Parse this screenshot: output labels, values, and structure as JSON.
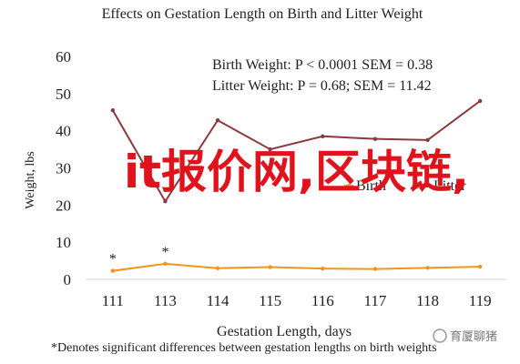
{
  "chart_data": {
    "type": "line",
    "title": "Effects on Gestation Length on Birth and Litter Weight",
    "xlabel": "Gestation Length, days",
    "ylabel": "Weight, lbs",
    "categories": [
      "111",
      "113",
      "114",
      "115",
      "116",
      "117",
      "118",
      "119"
    ],
    "ylim": [
      0,
      60
    ],
    "yticks": [
      0,
      10,
      20,
      30,
      40,
      50,
      60
    ],
    "grid": false,
    "legend_placement": "right-middle",
    "series": [
      {
        "name": "Birth",
        "color": "#f0951f",
        "marker": "dash",
        "values": [
          2.3,
          4.2,
          3.0,
          3.3,
          2.9,
          2.8,
          3.1,
          3.4
        ]
      },
      {
        "name": "Litter",
        "color": "#8a3a3f",
        "marker": "dash",
        "values": [
          45.5,
          21.0,
          42.8,
          35.0,
          38.5,
          37.8,
          37.5,
          48.0
        ]
      }
    ],
    "annotations": {
      "stats_line_1": "Birth Weight: P < 0.0001 SEM = 0.38",
      "stats_line_2": "Litter Weight: P = 0.68; SEM = 11.42",
      "asterisk_marks": [
        {
          "category": "111",
          "text": "*"
        },
        {
          "category": "113",
          "text": "*"
        }
      ],
      "footnote": "*Denotes significant differences between gestation lengths on birth weights"
    }
  },
  "overlay": {
    "watermark_text": "it报价网,区块链,",
    "badge_text": "育厦聊猪"
  }
}
